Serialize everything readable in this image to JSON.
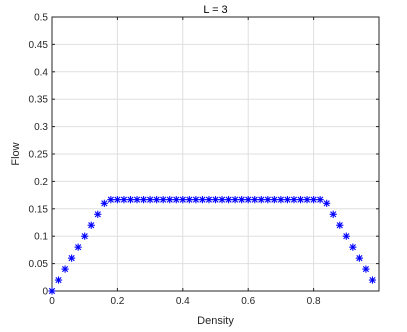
{
  "chart_data": {
    "type": "scatter",
    "title": "L = 3",
    "xlabel": "Density",
    "ylabel": "Flow",
    "xlim": [
      0,
      1
    ],
    "ylim": [
      0,
      0.5
    ],
    "xticks": [
      "0",
      "0.2",
      "0.4",
      "0.6",
      "0.8"
    ],
    "yticks": [
      "0",
      "0.05",
      "0.1",
      "0.15",
      "0.2",
      "0.25",
      "0.3",
      "0.35",
      "0.4",
      "0.45",
      "0.5"
    ],
    "grid": true,
    "marker": "asterisk",
    "marker_color": "#0000ff",
    "x": [
      0,
      0.02,
      0.04,
      0.06,
      0.08,
      0.1,
      0.12,
      0.14,
      0.16,
      0.18,
      0.2,
      0.22,
      0.24,
      0.26,
      0.28,
      0.3,
      0.32,
      0.34,
      0.36,
      0.38,
      0.4,
      0.42,
      0.44,
      0.46,
      0.48,
      0.5,
      0.52,
      0.54,
      0.56,
      0.58,
      0.6,
      0.62,
      0.64,
      0.66,
      0.68,
      0.7,
      0.72,
      0.74,
      0.76,
      0.78,
      0.8,
      0.82,
      0.84,
      0.86,
      0.88,
      0.9,
      0.92,
      0.94,
      0.96,
      0.98
    ],
    "y": [
      0,
      0.02,
      0.04,
      0.06,
      0.08,
      0.1,
      0.12,
      0.14,
      0.16,
      0.1667,
      0.1667,
      0.1667,
      0.1667,
      0.1667,
      0.1667,
      0.1667,
      0.1667,
      0.1667,
      0.1667,
      0.1667,
      0.1667,
      0.1667,
      0.1667,
      0.1667,
      0.1667,
      0.1667,
      0.1667,
      0.1667,
      0.1667,
      0.1667,
      0.1667,
      0.1667,
      0.1667,
      0.1667,
      0.1667,
      0.1667,
      0.1667,
      0.1667,
      0.1667,
      0.1667,
      0.1667,
      0.1667,
      0.16,
      0.14,
      0.12,
      0.1,
      0.08,
      0.06,
      0.04,
      0.02
    ]
  }
}
